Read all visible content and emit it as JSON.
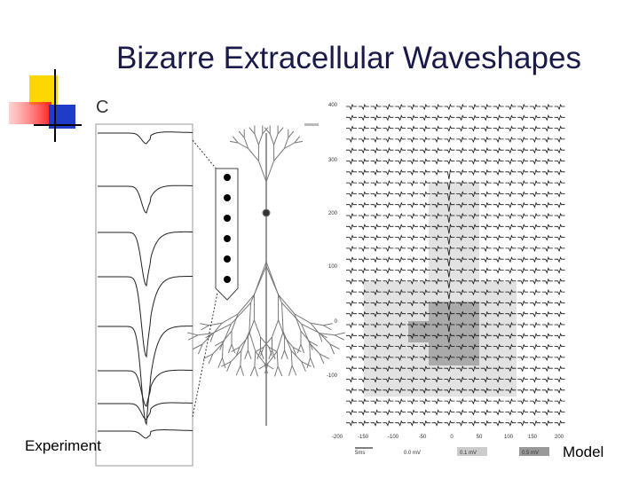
{
  "title": "Bizarre Extracellular Waveshapes",
  "panel_label": "C",
  "experiment_caption": "Experiment",
  "model_caption": "Model",
  "model_figure": {
    "x_axis_labels": [
      "-200",
      "-150",
      "-100",
      "-50",
      "0",
      "50",
      "100",
      "150",
      "200"
    ],
    "y_axis_labels": [
      "400",
      "300",
      "200",
      "100",
      "0",
      "-100"
    ],
    "scale_labels": [
      "5ms",
      "0.0 mV",
      "0.1 mV",
      "0.5 mV"
    ]
  }
}
